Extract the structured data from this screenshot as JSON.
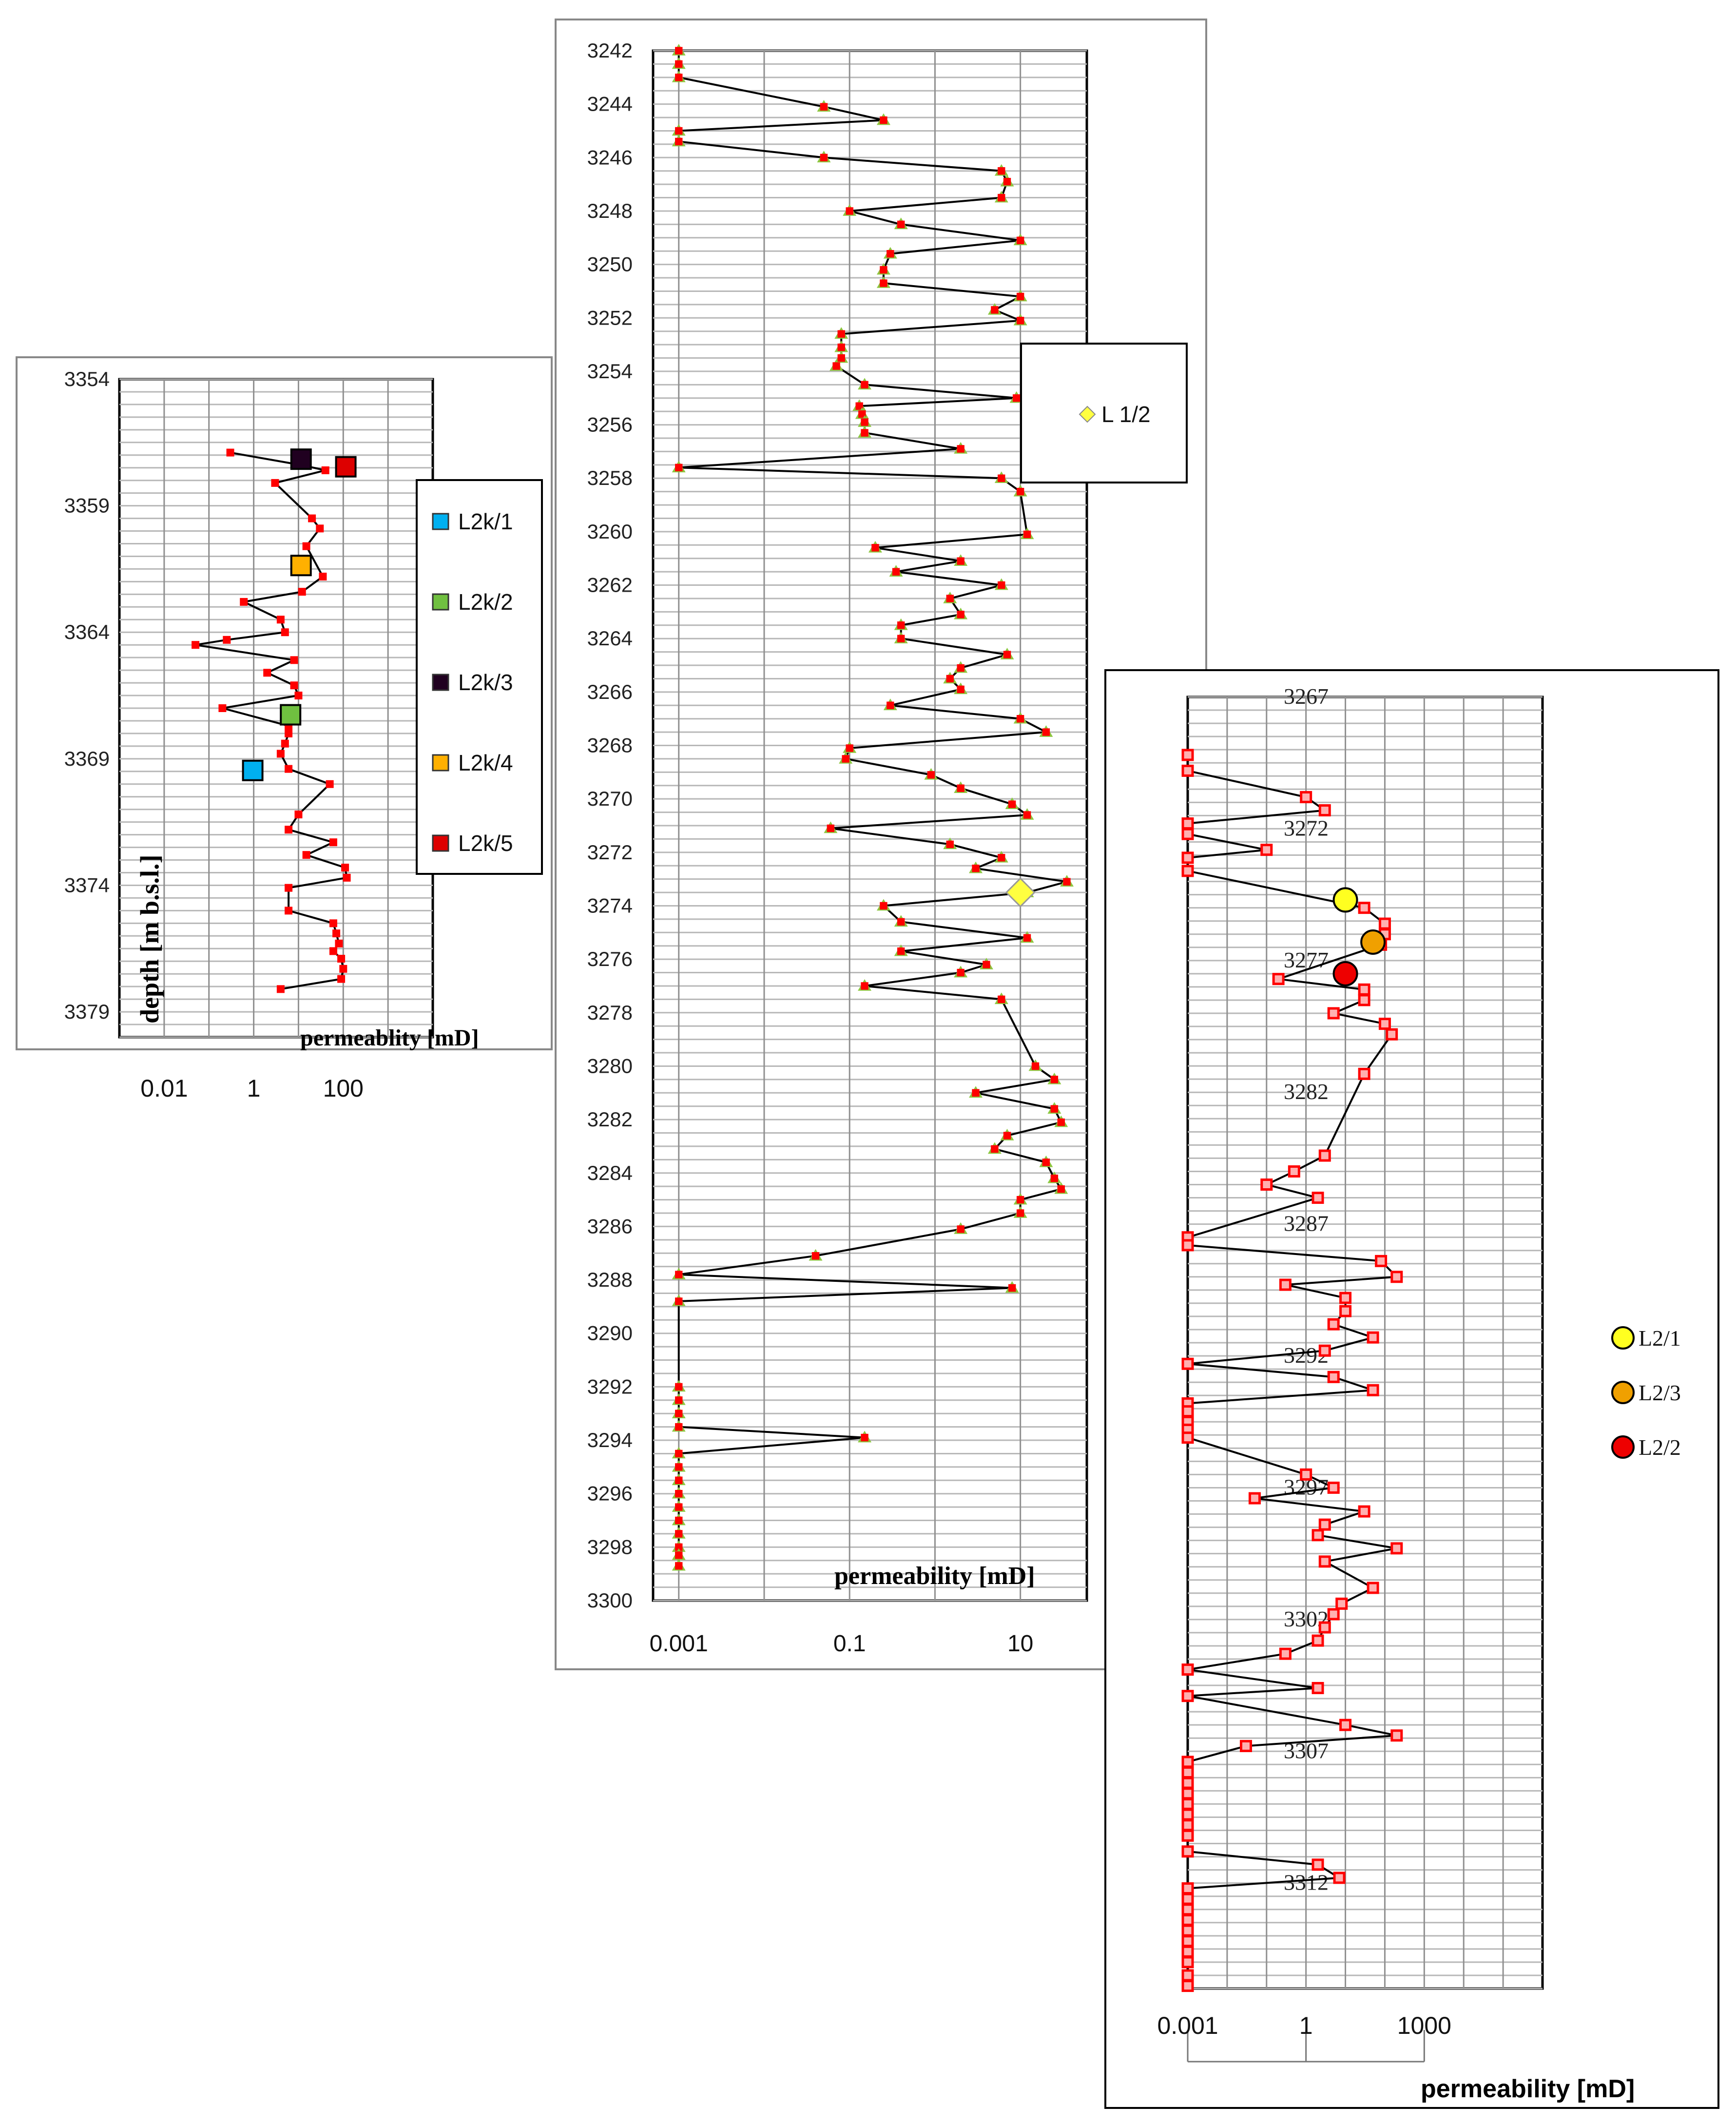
{
  "chart_data": [
    {
      "id": "left",
      "type": "line",
      "xlabel": "permeablity  [mD]",
      "ylabel": "depth [m b.s.l.]",
      "x_scale": "log",
      "xlim": [
        0.001,
        10000
      ],
      "ylim": [
        3354,
        3380
      ],
      "x_ticks": [
        {
          "value": 0.01,
          "label": "0.01"
        },
        {
          "value": 1,
          "label": "1"
        },
        {
          "value": 100,
          "label": "100"
        }
      ],
      "y_ticks": [
        3354,
        3359,
        3364,
        3369,
        3374,
        3379
      ],
      "series": [
        {
          "name": "permeability",
          "color": "#000000",
          "marker_color": "#ff0000",
          "points": [
            [
              0.3,
              3356.9
            ],
            [
              12,
              3357.4
            ],
            [
              40,
              3357.6
            ],
            [
              3,
              3358.1
            ],
            [
              20,
              3359.5
            ],
            [
              30,
              3359.9
            ],
            [
              15,
              3360.6
            ],
            [
              35,
              3361.8
            ],
            [
              12,
              3362.4
            ],
            [
              0.6,
              3362.8
            ],
            [
              4,
              3363.5
            ],
            [
              5,
              3364.0
            ],
            [
              0.25,
              3364.3
            ],
            [
              0.05,
              3364.5
            ],
            [
              8,
              3365.1
            ],
            [
              2,
              3365.6
            ],
            [
              8,
              3366.1
            ],
            [
              10,
              3366.5
            ],
            [
              0.2,
              3367.0
            ],
            [
              6,
              3367.7
            ],
            [
              6,
              3368.0
            ],
            [
              5,
              3368.4
            ],
            [
              4,
              3368.8
            ],
            [
              6,
              3369.4
            ],
            [
              50,
              3370.0
            ],
            [
              10,
              3371.2
            ],
            [
              6,
              3371.8
            ],
            [
              60,
              3372.3
            ],
            [
              15,
              3372.8
            ],
            [
              110,
              3373.3
            ],
            [
              120,
              3373.7
            ],
            [
              6,
              3374.1
            ],
            [
              6,
              3375.0
            ],
            [
              60,
              3375.5
            ],
            [
              70,
              3375.9
            ],
            [
              80,
              3376.3
            ],
            [
              60,
              3376.6
            ],
            [
              90,
              3376.9
            ],
            [
              100,
              3377.3
            ],
            [
              90,
              3377.7
            ],
            [
              4,
              3378.1
            ]
          ]
        }
      ],
      "highlights": [
        {
          "name": "L2k/1",
          "color": "#00b0f0",
          "x": 1,
          "y": 3369.5
        },
        {
          "name": "L2k/2",
          "color": "#70c040",
          "x": 7,
          "y": 3367.3
        },
        {
          "name": "L2k/3",
          "color": "#200020",
          "x": 12,
          "y": 3357.2
        },
        {
          "name": "L2k/4",
          "color": "#ffb000",
          "x": 12,
          "y": 3361.4
        },
        {
          "name": "L2k/5",
          "color": "#dd0000",
          "x": 120,
          "y": 3357.5
        }
      ],
      "legend": [
        "L2k/1",
        "L2k/2",
        "L2k/3",
        "L2k/4",
        "L2k/5"
      ]
    },
    {
      "id": "middle",
      "type": "line",
      "xlabel": "permeability  [mD]",
      "x_scale": "log",
      "xlim": [
        0.0005,
        60
      ],
      "ylim": [
        3242,
        3300
      ],
      "x_ticks": [
        {
          "value": 0.001,
          "label": "0.001"
        },
        {
          "value": 0.1,
          "label": "0.1"
        },
        {
          "value": 10,
          "label": "10"
        }
      ],
      "y_ticks": [
        3242,
        3244,
        3246,
        3248,
        3250,
        3252,
        3254,
        3256,
        3258,
        3260,
        3262,
        3264,
        3266,
        3268,
        3270,
        3272,
        3274,
        3276,
        3278,
        3280,
        3282,
        3284,
        3286,
        3288,
        3290,
        3292,
        3294,
        3296,
        3298,
        3300
      ],
      "series": [
        {
          "name": "permeability",
          "color": "#000000",
          "marker_color": "#ff0000",
          "points": [
            [
              0.001,
              3242
            ],
            [
              0.001,
              3242.5
            ],
            [
              0.001,
              3243
            ],
            [
              0.05,
              3244.1
            ],
            [
              0.25,
              3244.6
            ],
            [
              0.001,
              3245
            ],
            [
              0.001,
              3245.4
            ],
            [
              0.05,
              3246
            ],
            [
              6,
              3246.5
            ],
            [
              7,
              3246.9
            ],
            [
              6,
              3247.5
            ],
            [
              0.1,
              3248
            ],
            [
              0.4,
              3248.5
            ],
            [
              10,
              3249.1
            ],
            [
              0.3,
              3249.6
            ],
            [
              0.25,
              3250.2
            ],
            [
              0.25,
              3250.7
            ],
            [
              10,
              3251.2
            ],
            [
              5,
              3251.7
            ],
            [
              10,
              3252.1
            ],
            [
              0.08,
              3252.6
            ],
            [
              0.08,
              3253.1
            ],
            [
              0.08,
              3253.5
            ],
            [
              0.07,
              3253.8
            ],
            [
              0.15,
              3254.5
            ],
            [
              9,
              3255
            ],
            [
              0.13,
              3255.3
            ],
            [
              0.14,
              3255.6
            ],
            [
              0.15,
              3255.9
            ],
            [
              0.15,
              3256.3
            ],
            [
              2,
              3256.9
            ],
            [
              0.001,
              3257.6
            ],
            [
              6,
              3258
            ],
            [
              10,
              3258.5
            ],
            [
              12,
              3260.1
            ],
            [
              0.2,
              3260.6
            ],
            [
              2,
              3261.1
            ],
            [
              0.35,
              3261.5
            ],
            [
              6,
              3262
            ],
            [
              1.5,
              3262.5
            ],
            [
              2,
              3263.1
            ],
            [
              0.4,
              3263.5
            ],
            [
              0.4,
              3264
            ],
            [
              7,
              3264.6
            ],
            [
              2,
              3265.1
            ],
            [
              1.5,
              3265.5
            ],
            [
              2,
              3265.9
            ],
            [
              0.3,
              3266.5
            ],
            [
              10,
              3267
            ],
            [
              20,
              3267.5
            ],
            [
              0.1,
              3268.1
            ],
            [
              0.09,
              3268.5
            ],
            [
              0.9,
              3269.1
            ],
            [
              2,
              3269.6
            ],
            [
              8,
              3270.2
            ],
            [
              12,
              3270.6
            ],
            [
              0.06,
              3271.1
            ],
            [
              1.5,
              3271.7
            ],
            [
              6,
              3272.2
            ],
            [
              3,
              3272.6
            ],
            [
              35,
              3273.1
            ],
            [
              12,
              3273.5
            ],
            [
              0.25,
              3274
            ],
            [
              0.4,
              3274.6
            ],
            [
              12,
              3275.2
            ],
            [
              0.4,
              3275.7
            ],
            [
              4,
              3276.2
            ],
            [
              2,
              3276.5
            ],
            [
              0.15,
              3277
            ],
            [
              6,
              3277.5
            ],
            [
              15,
              3280
            ],
            [
              25,
              3280.5
            ],
            [
              3,
              3281
            ],
            [
              25,
              3281.6
            ],
            [
              30,
              3282.1
            ],
            [
              7,
              3282.6
            ],
            [
              5,
              3283.1
            ],
            [
              20,
              3283.6
            ],
            [
              25,
              3284.2
            ],
            [
              30,
              3284.6
            ],
            [
              10,
              3285
            ],
            [
              10,
              3285.5
            ],
            [
              2,
              3286.1
            ],
            [
              0.04,
              3287.1
            ],
            [
              0.001,
              3287.8
            ],
            [
              8,
              3288.3
            ],
            [
              0.001,
              3288.8
            ],
            [
              0.001,
              3292
            ],
            [
              0.001,
              3292.5
            ],
            [
              0.001,
              3293
            ],
            [
              0.001,
              3293.5
            ],
            [
              0.15,
              3293.9
            ],
            [
              0.001,
              3294.5
            ],
            [
              0.001,
              3295
            ],
            [
              0.001,
              3295.5
            ],
            [
              0.001,
              3296
            ],
            [
              0.001,
              3296.5
            ],
            [
              0.001,
              3297
            ],
            [
              0.001,
              3297.5
            ],
            [
              0.001,
              3298
            ],
            [
              0.001,
              3298.3
            ],
            [
              0.001,
              3298.7
            ]
          ]
        }
      ],
      "highlights": [
        {
          "name": "L 1/2",
          "color": "#ffff40",
          "x": 10,
          "y": 3273.5
        }
      ],
      "legend": [
        "L 1/2"
      ]
    },
    {
      "id": "right",
      "type": "line",
      "xlabel": "permeability [mD]",
      "x_scale": "log",
      "xlim": [
        0.001,
        1000000
      ],
      "ylim": [
        3267,
        3316
      ],
      "x_ticks": [
        {
          "value": 0.001,
          "label": "0.001"
        },
        {
          "value": 1,
          "label": "1"
        },
        {
          "value": 1000,
          "label": "1000"
        }
      ],
      "y_ticks": [
        3267,
        3272,
        3277,
        3282,
        3287,
        3292,
        3297,
        3302,
        3307,
        3312
      ],
      "series": [
        {
          "name": "permeability",
          "color": "#000000",
          "marker_color": "#ff0000",
          "points": [
            [
              0.001,
              3269.2
            ],
            [
              0.001,
              3269.8
            ],
            [
              1,
              3270.8
            ],
            [
              3,
              3271.3
            ],
            [
              0.001,
              3271.8
            ],
            [
              0.001,
              3272.2
            ],
            [
              0.1,
              3272.8
            ],
            [
              0.001,
              3273.1
            ],
            [
              0.001,
              3273.6
            ],
            [
              30,
              3275
            ],
            [
              100,
              3275.6
            ],
            [
              100,
              3276
            ],
            [
              80,
              3276.4
            ],
            [
              0.2,
              3277.7
            ],
            [
              30,
              3278.1
            ],
            [
              30,
              3278.5
            ],
            [
              5,
              3279
            ],
            [
              100,
              3279.4
            ],
            [
              150,
              3279.8
            ],
            [
              30,
              3281.3
            ],
            [
              3,
              3284.4
            ],
            [
              0.5,
              3285
            ],
            [
              0.1,
              3285.5
            ],
            [
              2,
              3286
            ],
            [
              0.001,
              3287.5
            ],
            [
              0.001,
              3287.8
            ],
            [
              80,
              3288.4
            ],
            [
              200,
              3289
            ],
            [
              0.3,
              3289.3
            ],
            [
              10,
              3289.8
            ],
            [
              10,
              3290.3
            ],
            [
              5,
              3290.8
            ],
            [
              50,
              3291.3
            ],
            [
              3,
              3291.8
            ],
            [
              0.001,
              3292.3
            ],
            [
              5,
              3292.8
            ],
            [
              50,
              3293.3
            ],
            [
              0.001,
              3293.8
            ],
            [
              0.001,
              3294.1
            ],
            [
              0.001,
              3294.5
            ],
            [
              0.001,
              3294.8
            ],
            [
              0.001,
              3295.1
            ],
            [
              1,
              3296.5
            ],
            [
              5,
              3297
            ],
            [
              0.05,
              3297.4
            ],
            [
              30,
              3297.9
            ],
            [
              3,
              3298.4
            ],
            [
              2,
              3298.8
            ],
            [
              200,
              3299.3
            ],
            [
              3,
              3299.8
            ],
            [
              50,
              3300.8
            ],
            [
              8,
              3301.4
            ],
            [
              5,
              3301.8
            ],
            [
              3,
              3302.3
            ],
            [
              2,
              3302.8
            ],
            [
              0.3,
              3303.3
            ],
            [
              0.001,
              3303.9
            ],
            [
              2,
              3304.6
            ],
            [
              0.001,
              3304.9
            ],
            [
              10,
              3306
            ],
            [
              200,
              3306.4
            ],
            [
              0.03,
              3306.8
            ],
            [
              0.001,
              3307.4
            ],
            [
              0.001,
              3307.8
            ],
            [
              0.001,
              3308.2
            ],
            [
              0.001,
              3308.6
            ],
            [
              0.001,
              3309
            ],
            [
              0.001,
              3309.4
            ],
            [
              0.001,
              3309.8
            ],
            [
              0.001,
              3310.2
            ],
            [
              0.001,
              3310.8
            ],
            [
              2,
              3311.3
            ],
            [
              7,
              3311.8
            ],
            [
              0.001,
              3312.2
            ],
            [
              0.001,
              3312.6
            ],
            [
              0.001,
              3313
            ],
            [
              0.001,
              3313.4
            ],
            [
              0.001,
              3313.8
            ],
            [
              0.001,
              3314.2
            ],
            [
              0.001,
              3314.6
            ],
            [
              0.001,
              3315
            ],
            [
              0.001,
              3315.5
            ],
            [
              0.001,
              3315.9
            ]
          ]
        }
      ],
      "highlights": [
        {
          "name": "L2/1",
          "color": "#ffff20",
          "x": 10,
          "y": 3274.7
        },
        {
          "name": "L2/3",
          "color": "#f0a000",
          "x": 50,
          "y": 3276.3
        },
        {
          "name": "L2/2",
          "color": "#ee0000",
          "x": 10,
          "y": 3277.5
        }
      ],
      "legend": [
        "L2/1",
        "L2/3",
        "L2/2"
      ]
    }
  ]
}
